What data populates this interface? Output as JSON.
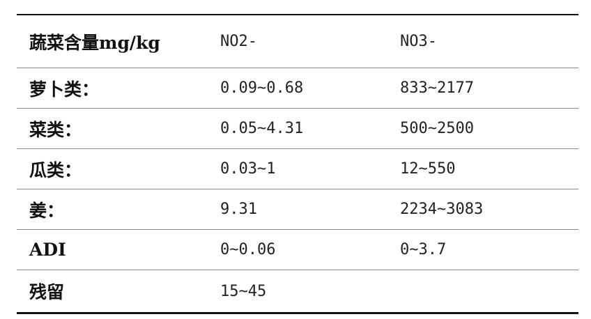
{
  "table": {
    "headers": [
      "蔬菜含量mg/kg",
      "NO2-",
      "NO3-"
    ],
    "rows": [
      [
        "萝卜类：",
        "0.09~0.68",
        "833~2177"
      ],
      [
        "菜类：",
        "0.05~4.31",
        "500~2500"
      ],
      [
        "瓜类：",
        "0.03~1",
        "12~550"
      ],
      [
        "姜：",
        "9.31",
        "2234~3083"
      ],
      [
        "ADI",
        "0~0.06",
        "0~3.7"
      ],
      [
        "残留",
        "15~45",
        ""
      ]
    ]
  }
}
